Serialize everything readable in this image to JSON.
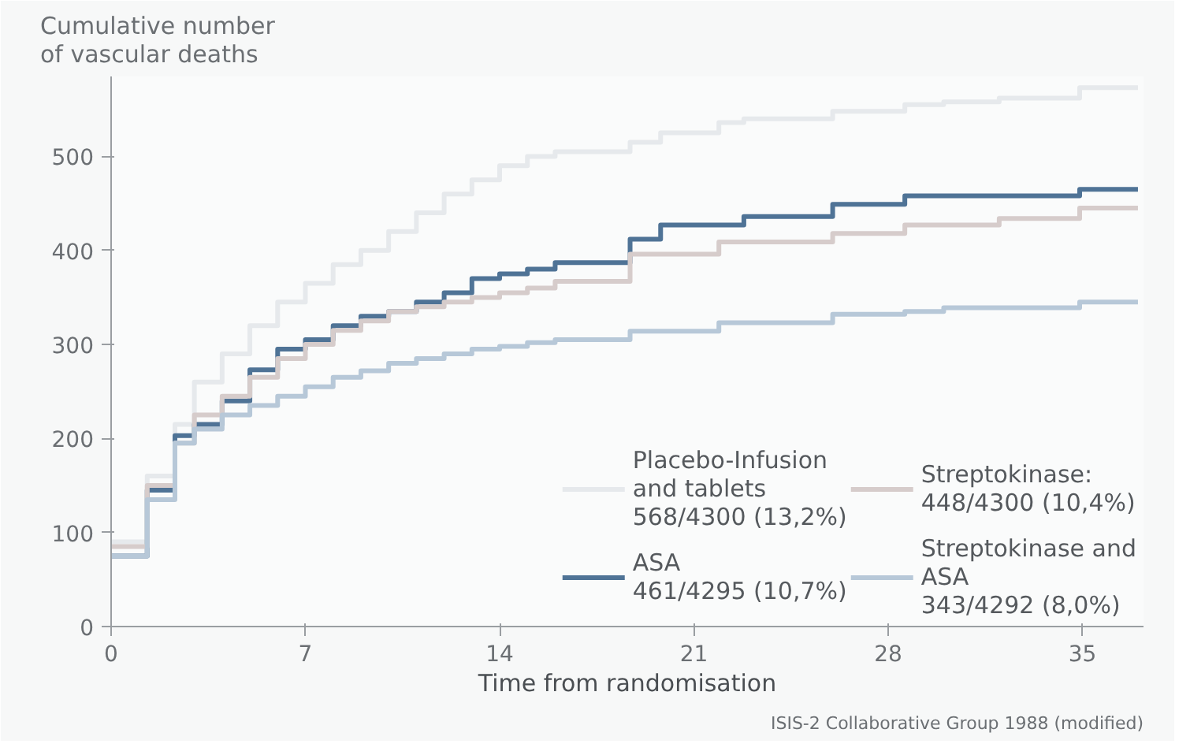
{
  "chart_data": {
    "type": "step",
    "ylabel": "Cumulative number\nof vascular deaths",
    "xlabel": "Time from randomisation",
    "annotations": [
      "ISIS-2 Collaborative Group 1988 (modified)"
    ],
    "x": [
      0,
      1.3,
      2.3,
      3,
      4,
      5,
      6,
      7,
      8,
      9,
      10,
      11,
      12,
      13,
      14,
      15,
      16,
      18.7,
      19.8,
      21.9,
      22.8,
      26,
      28.6,
      30,
      32,
      34.9,
      37
    ],
    "xlim": [
      0,
      37.2
    ],
    "ylim": [
      0,
      585
    ],
    "xticks": [
      0,
      7,
      14,
      21,
      28,
      35
    ],
    "yticks": [
      0,
      100,
      200,
      300,
      400,
      500
    ],
    "grid": false,
    "legend": "bottom right",
    "line_style": "solid",
    "marker": "none",
    "series": [
      {
        "name": "Placebo-Infusion\nand tablets\n568/4300 (13,2%)",
        "color": "#e6e9ec",
        "values": [
          90,
          160,
          215,
          260,
          290,
          320,
          345,
          365,
          385,
          400,
          420,
          440,
          460,
          475,
          490,
          500,
          505,
          515,
          525,
          536,
          540,
          548,
          555,
          558,
          562,
          573,
          573
        ]
      },
      {
        "name": "ASA\n461/4295 (10,7%)",
        "color": "#4f7396",
        "values": [
          75,
          145,
          203,
          215,
          240,
          273,
          295,
          305,
          320,
          330,
          335,
          345,
          355,
          370,
          375,
          380,
          387,
          412,
          427,
          427,
          436,
          449,
          458,
          458,
          458,
          465,
          465
        ]
      },
      {
        "name": "Streptokinase:\n448/4300 (10,4%)",
        "color": "#d6cccb",
        "values": [
          85,
          150,
          195,
          225,
          245,
          265,
          285,
          300,
          315,
          325,
          335,
          340,
          345,
          350,
          355,
          360,
          367,
          396,
          396,
          409,
          409,
          418,
          427,
          427,
          434,
          445,
          445
        ]
      },
      {
        "name": "Streptokinase and\nASA\n343/4292 (8,0%)",
        "color": "#b7c8d8",
        "values": [
          75,
          135,
          195,
          210,
          225,
          235,
          245,
          255,
          265,
          272,
          280,
          285,
          290,
          295,
          298,
          302,
          305,
          314,
          314,
          323,
          323,
          332,
          335,
          339,
          339,
          345,
          345
        ]
      }
    ]
  }
}
